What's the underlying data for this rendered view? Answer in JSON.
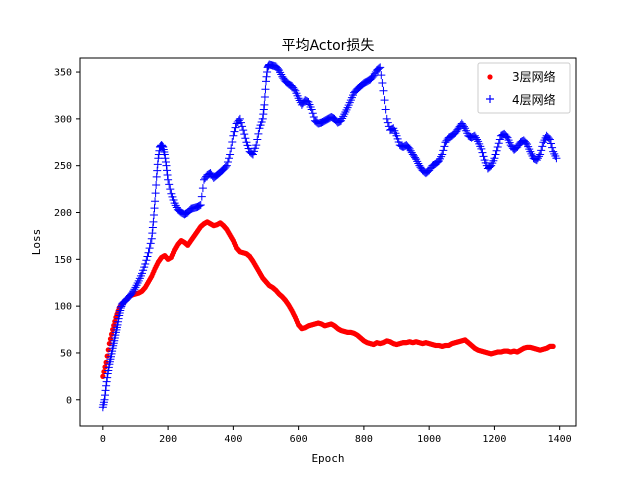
{
  "chart_data": {
    "type": "scatter",
    "title": "平均Actor损失",
    "xlabel": "Epoch",
    "ylabel": "Loss",
    "xlim": [
      -70,
      1450
    ],
    "ylim": [
      -28,
      365
    ],
    "xticks": [
      0,
      200,
      400,
      600,
      800,
      1000,
      1200,
      1400
    ],
    "yticks": [
      0,
      50,
      100,
      150,
      200,
      250,
      300,
      350
    ],
    "grid": false,
    "legend": {
      "location": "top-right"
    },
    "series": [
      {
        "name": "3层网络",
        "color": "#ff0000",
        "marker": "dot",
        "points": [
          [
            0,
            25
          ],
          [
            10,
            40
          ],
          [
            20,
            60
          ],
          [
            30,
            75
          ],
          [
            40,
            88
          ],
          [
            50,
            98
          ],
          [
            60,
            103
          ],
          [
            70,
            106
          ],
          [
            80,
            110
          ],
          [
            90,
            112
          ],
          [
            100,
            113
          ],
          [
            110,
            114
          ],
          [
            120,
            116
          ],
          [
            130,
            120
          ],
          [
            140,
            126
          ],
          [
            150,
            132
          ],
          [
            160,
            140
          ],
          [
            170,
            147
          ],
          [
            180,
            152
          ],
          [
            190,
            154
          ],
          [
            200,
            150
          ],
          [
            210,
            152
          ],
          [
            220,
            160
          ],
          [
            230,
            166
          ],
          [
            240,
            170
          ],
          [
            250,
            168
          ],
          [
            260,
            165
          ],
          [
            270,
            170
          ],
          [
            280,
            175
          ],
          [
            290,
            180
          ],
          [
            300,
            185
          ],
          [
            310,
            188
          ],
          [
            320,
            190
          ],
          [
            330,
            188
          ],
          [
            340,
            186
          ],
          [
            350,
            187
          ],
          [
            360,
            189
          ],
          [
            370,
            186
          ],
          [
            380,
            182
          ],
          [
            390,
            176
          ],
          [
            400,
            170
          ],
          [
            410,
            162
          ],
          [
            420,
            158
          ],
          [
            430,
            157
          ],
          [
            440,
            156
          ],
          [
            450,
            153
          ],
          [
            460,
            148
          ],
          [
            470,
            142
          ],
          [
            480,
            136
          ],
          [
            490,
            130
          ],
          [
            500,
            126
          ],
          [
            510,
            122
          ],
          [
            520,
            120
          ],
          [
            530,
            117
          ],
          [
            540,
            113
          ],
          [
            550,
            110
          ],
          [
            560,
            106
          ],
          [
            570,
            101
          ],
          [
            580,
            95
          ],
          [
            590,
            88
          ],
          [
            600,
            80
          ],
          [
            610,
            76
          ],
          [
            620,
            77
          ],
          [
            630,
            79
          ],
          [
            640,
            80
          ],
          [
            650,
            81
          ],
          [
            660,
            82
          ],
          [
            670,
            81
          ],
          [
            680,
            79
          ],
          [
            690,
            80
          ],
          [
            700,
            81
          ],
          [
            710,
            79
          ],
          [
            720,
            76
          ],
          [
            730,
            74
          ],
          [
            740,
            73
          ],
          [
            750,
            72
          ],
          [
            760,
            72
          ],
          [
            770,
            71
          ],
          [
            780,
            69
          ],
          [
            790,
            66
          ],
          [
            800,
            63
          ],
          [
            810,
            61
          ],
          [
            820,
            60
          ],
          [
            830,
            59
          ],
          [
            840,
            61
          ],
          [
            850,
            60
          ],
          [
            860,
            61
          ],
          [
            870,
            63
          ],
          [
            880,
            62
          ],
          [
            890,
            60
          ],
          [
            900,
            59
          ],
          [
            910,
            60
          ],
          [
            920,
            61
          ],
          [
            930,
            61
          ],
          [
            940,
            62
          ],
          [
            950,
            61
          ],
          [
            960,
            62
          ],
          [
            970,
            61
          ],
          [
            980,
            60
          ],
          [
            990,
            61
          ],
          [
            1000,
            60
          ],
          [
            1010,
            59
          ],
          [
            1020,
            58
          ],
          [
            1030,
            58
          ],
          [
            1040,
            57
          ],
          [
            1050,
            58
          ],
          [
            1060,
            58
          ],
          [
            1070,
            60
          ],
          [
            1080,
            61
          ],
          [
            1090,
            62
          ],
          [
            1100,
            63
          ],
          [
            1110,
            64
          ],
          [
            1120,
            61
          ],
          [
            1130,
            58
          ],
          [
            1140,
            55
          ],
          [
            1150,
            53
          ],
          [
            1160,
            52
          ],
          [
            1170,
            51
          ],
          [
            1180,
            50
          ],
          [
            1190,
            49
          ],
          [
            1200,
            50
          ],
          [
            1210,
            51
          ],
          [
            1220,
            51
          ],
          [
            1230,
            52
          ],
          [
            1240,
            52
          ],
          [
            1250,
            51
          ],
          [
            1260,
            52
          ],
          [
            1270,
            51
          ],
          [
            1280,
            53
          ],
          [
            1290,
            55
          ],
          [
            1300,
            56
          ],
          [
            1310,
            56
          ],
          [
            1320,
            55
          ],
          [
            1330,
            54
          ],
          [
            1340,
            53
          ],
          [
            1350,
            54
          ],
          [
            1360,
            55
          ],
          [
            1370,
            57
          ],
          [
            1380,
            57
          ]
        ]
      },
      {
        "name": "4层网络",
        "color": "#0000ff",
        "marker": "plus",
        "points": [
          [
            0,
            -8
          ],
          [
            5,
            0
          ],
          [
            10,
            15
          ],
          [
            15,
            28
          ],
          [
            20,
            38
          ],
          [
            25,
            46
          ],
          [
            30,
            55
          ],
          [
            35,
            63
          ],
          [
            40,
            72
          ],
          [
            45,
            80
          ],
          [
            50,
            90
          ],
          [
            55,
            98
          ],
          [
            60,
            103
          ],
          [
            70,
            106
          ],
          [
            80,
            110
          ],
          [
            90,
            114
          ],
          [
            100,
            120
          ],
          [
            110,
            127
          ],
          [
            120,
            135
          ],
          [
            130,
            145
          ],
          [
            140,
            157
          ],
          [
            150,
            172
          ],
          [
            155,
            190
          ],
          [
            160,
            212
          ],
          [
            165,
            238
          ],
          [
            170,
            258
          ],
          [
            175,
            270
          ],
          [
            180,
            272
          ],
          [
            185,
            270
          ],
          [
            190,
            262
          ],
          [
            195,
            250
          ],
          [
            200,
            235
          ],
          [
            210,
            220
          ],
          [
            220,
            210
          ],
          [
            230,
            203
          ],
          [
            240,
            200
          ],
          [
            250,
            198
          ],
          [
            260,
            200
          ],
          [
            270,
            204
          ],
          [
            280,
            205
          ],
          [
            290,
            206
          ],
          [
            300,
            208
          ],
          [
            310,
            235
          ],
          [
            320,
            240
          ],
          [
            330,
            242
          ],
          [
            340,
            237
          ],
          [
            350,
            240
          ],
          [
            360,
            243
          ],
          [
            370,
            246
          ],
          [
            380,
            250
          ],
          [
            390,
            262
          ],
          [
            400,
            282
          ],
          [
            410,
            295
          ],
          [
            420,
            300
          ],
          [
            430,
            288
          ],
          [
            440,
            275
          ],
          [
            450,
            265
          ],
          [
            460,
            262
          ],
          [
            470,
            272
          ],
          [
            480,
            290
          ],
          [
            490,
            300
          ],
          [
            495,
            315
          ],
          [
            500,
            340
          ],
          [
            505,
            355
          ],
          [
            510,
            358
          ],
          [
            520,
            357
          ],
          [
            530,
            356
          ],
          [
            540,
            352
          ],
          [
            550,
            345
          ],
          [
            560,
            340
          ],
          [
            570,
            337
          ],
          [
            580,
            335
          ],
          [
            590,
            330
          ],
          [
            600,
            322
          ],
          [
            610,
            315
          ],
          [
            620,
            320
          ],
          [
            630,
            318
          ],
          [
            640,
            310
          ],
          [
            650,
            298
          ],
          [
            660,
            295
          ],
          [
            670,
            296
          ],
          [
            680,
            298
          ],
          [
            690,
            300
          ],
          [
            700,
            302
          ],
          [
            710,
            300
          ],
          [
            720,
            296
          ],
          [
            730,
            298
          ],
          [
            740,
            305
          ],
          [
            750,
            312
          ],
          [
            760,
            320
          ],
          [
            770,
            328
          ],
          [
            780,
            332
          ],
          [
            790,
            335
          ],
          [
            800,
            338
          ],
          [
            810,
            340
          ],
          [
            820,
            342
          ],
          [
            830,
            346
          ],
          [
            840,
            352
          ],
          [
            850,
            355
          ],
          [
            860,
            330
          ],
          [
            870,
            300
          ],
          [
            880,
            288
          ],
          [
            890,
            290
          ],
          [
            900,
            282
          ],
          [
            910,
            272
          ],
          [
            920,
            270
          ],
          [
            930,
            272
          ],
          [
            940,
            268
          ],
          [
            950,
            262
          ],
          [
            960,
            257
          ],
          [
            970,
            250
          ],
          [
            980,
            245
          ],
          [
            990,
            242
          ],
          [
            1000,
            245
          ],
          [
            1010,
            250
          ],
          [
            1020,
            252
          ],
          [
            1030,
            255
          ],
          [
            1040,
            262
          ],
          [
            1050,
            275
          ],
          [
            1060,
            280
          ],
          [
            1070,
            282
          ],
          [
            1080,
            285
          ],
          [
            1090,
            290
          ],
          [
            1100,
            295
          ],
          [
            1110,
            290
          ],
          [
            1120,
            282
          ],
          [
            1130,
            280
          ],
          [
            1140,
            282
          ],
          [
            1150,
            276
          ],
          [
            1160,
            268
          ],
          [
            1170,
            256
          ],
          [
            1180,
            247
          ],
          [
            1190,
            250
          ],
          [
            1200,
            258
          ],
          [
            1210,
            270
          ],
          [
            1220,
            282
          ],
          [
            1230,
            284
          ],
          [
            1240,
            280
          ],
          [
            1250,
            272
          ],
          [
            1260,
            267
          ],
          [
            1270,
            270
          ],
          [
            1280,
            275
          ],
          [
            1290,
            277
          ],
          [
            1300,
            273
          ],
          [
            1310,
            265
          ],
          [
            1320,
            258
          ],
          [
            1330,
            256
          ],
          [
            1340,
            262
          ],
          [
            1350,
            275
          ],
          [
            1360,
            282
          ],
          [
            1370,
            278
          ],
          [
            1380,
            265
          ],
          [
            1390,
            258
          ]
        ]
      }
    ]
  }
}
